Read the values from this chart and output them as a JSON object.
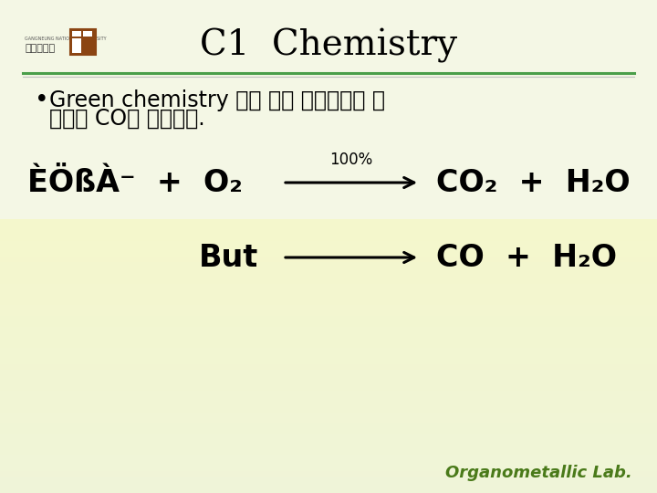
{
  "bg_color": "#f0f4e0",
  "title": "C1  Chemistry",
  "title_fontsize": 28,
  "title_color": "#000000",
  "divider_color_top": "#4a9e4a",
  "divider_color_bottom": "#c0c0c0",
  "bullet_text_line1": "Green chemistry 라고 하며 공해물질로 생",
  "bullet_text_line2": "각되는 CO를 제거한다.",
  "bullet_fontsize": 17,
  "bullet_color": "#000000",
  "eq_fontsize": 22,
  "eq_color": "#000000",
  "footer": "Organometallic Lab.",
  "footer_color": "#4a7a1a",
  "footer_fontsize": 13
}
